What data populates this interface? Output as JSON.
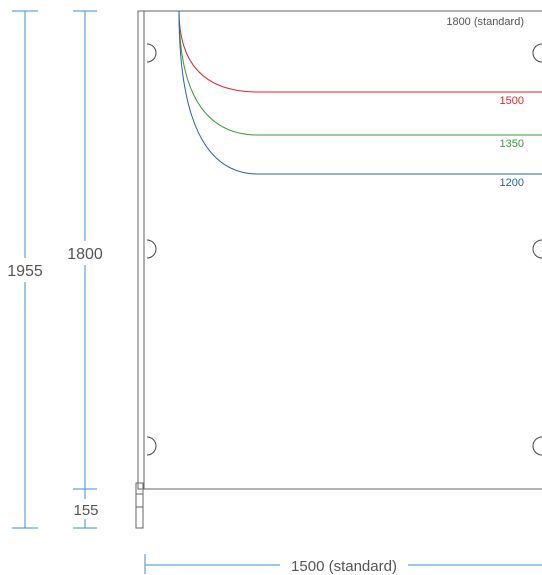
{
  "dimensions": {
    "overall_height": "1955",
    "panel_height": "1800",
    "base_height": "155",
    "width_label": "1500 (standard)"
  },
  "variants": [
    {
      "label": "1800 (standard)",
      "color": "#555555"
    },
    {
      "label": "1500",
      "color": "#d9262c"
    },
    {
      "label": "1350",
      "color": "#3a9a3a"
    },
    {
      "label": "1200",
      "color": "#2a5fb0"
    }
  ],
  "colors": {
    "dimension": "#3d8fd6",
    "frame": "#666666"
  }
}
